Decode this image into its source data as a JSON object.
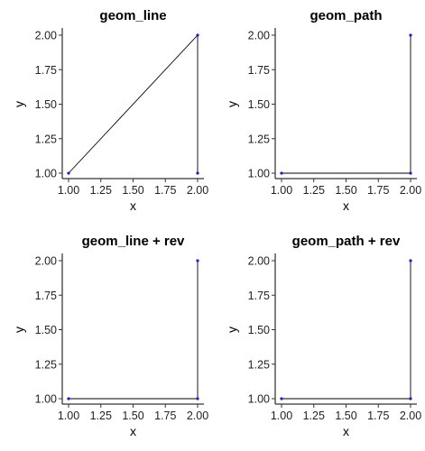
{
  "chart_data": [
    {
      "type": "line",
      "title": "geom_line",
      "xlabel": "x",
      "ylabel": "y",
      "xlim": [
        1,
        2
      ],
      "ylim": [
        1,
        2
      ],
      "x_ticks": [
        "1.00",
        "1.25",
        "1.50",
        "1.75",
        "2.00"
      ],
      "y_ticks": [
        "1.00",
        "1.25",
        "1.50",
        "1.75",
        "2.00"
      ],
      "points": [
        {
          "x": 1,
          "y": 1
        },
        {
          "x": 2,
          "y": 2
        },
        {
          "x": 2,
          "y": 1
        }
      ],
      "path": [
        {
          "x": 1,
          "y": 1
        },
        {
          "x": 2,
          "y": 2
        },
        {
          "x": 2,
          "y": 1
        }
      ],
      "point_color": "#1c1cc8",
      "line_color": "#000000",
      "grid": false
    },
    {
      "type": "line",
      "title": "geom_path",
      "xlabel": "x",
      "ylabel": "y",
      "xlim": [
        1,
        2
      ],
      "ylim": [
        1,
        2
      ],
      "x_ticks": [
        "1.00",
        "1.25",
        "1.50",
        "1.75",
        "2.00"
      ],
      "y_ticks": [
        "1.00",
        "1.25",
        "1.50",
        "1.75",
        "2.00"
      ],
      "points": [
        {
          "x": 1,
          "y": 1
        },
        {
          "x": 2,
          "y": 1
        },
        {
          "x": 2,
          "y": 2
        }
      ],
      "path": [
        {
          "x": 1,
          "y": 1
        },
        {
          "x": 2,
          "y": 1
        },
        {
          "x": 2,
          "y": 2
        }
      ],
      "point_color": "#1c1cc8",
      "line_color": "#000000",
      "grid": false
    },
    {
      "type": "line",
      "title": "geom_line + rev",
      "xlabel": "x",
      "ylabel": "y",
      "xlim": [
        1,
        2
      ],
      "ylim": [
        1,
        2
      ],
      "x_ticks": [
        "1.00",
        "1.25",
        "1.50",
        "1.75",
        "2.00"
      ],
      "y_ticks": [
        "1.00",
        "1.25",
        "1.50",
        "1.75",
        "2.00"
      ],
      "points": [
        {
          "x": 1,
          "y": 1
        },
        {
          "x": 2,
          "y": 1
        },
        {
          "x": 2,
          "y": 2
        }
      ],
      "path": [
        {
          "x": 1,
          "y": 1
        },
        {
          "x": 2,
          "y": 1
        },
        {
          "x": 2,
          "y": 2
        }
      ],
      "point_color": "#1c1cc8",
      "line_color": "#000000",
      "grid": false
    },
    {
      "type": "line",
      "title": "geom_path + rev",
      "xlabel": "x",
      "ylabel": "y",
      "xlim": [
        1,
        2
      ],
      "ylim": [
        1,
        2
      ],
      "x_ticks": [
        "1.00",
        "1.25",
        "1.50",
        "1.75",
        "2.00"
      ],
      "y_ticks": [
        "1.00",
        "1.25",
        "1.50",
        "1.75",
        "2.00"
      ],
      "points": [
        {
          "x": 1,
          "y": 1
        },
        {
          "x": 2,
          "y": 1
        },
        {
          "x": 2,
          "y": 2
        }
      ],
      "path": [
        {
          "x": 1,
          "y": 1
        },
        {
          "x": 2,
          "y": 1
        },
        {
          "x": 2,
          "y": 2
        }
      ],
      "point_color": "#1c1cc8",
      "line_color": "#000000",
      "grid": false
    }
  ]
}
